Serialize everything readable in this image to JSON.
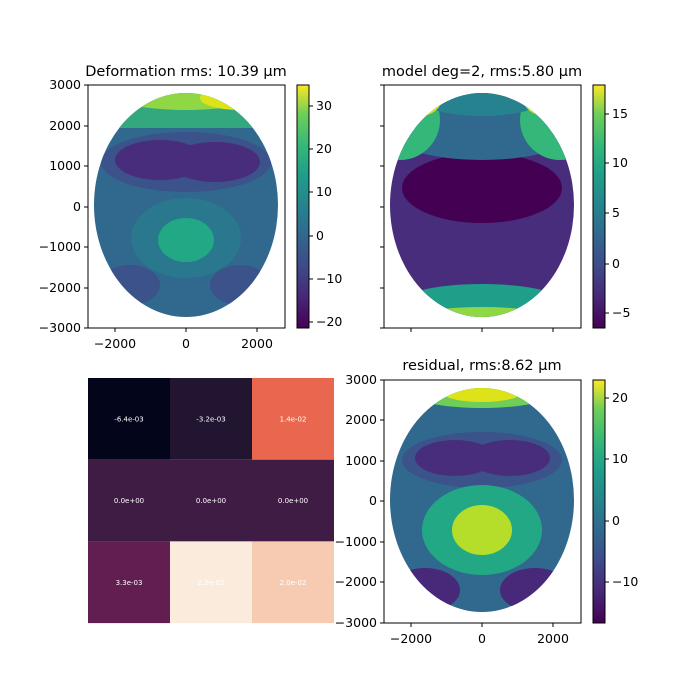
{
  "chart_data": [
    {
      "type": "heatmap",
      "panel": "top-left",
      "title": "Deformation rms: 10.39 μm",
      "xlabel": "",
      "ylabel": "",
      "xlim": [
        -2600,
        2600
      ],
      "ylim": [
        -3000,
        3000
      ],
      "xticks": [
        "−2000",
        "0",
        "2000"
      ],
      "yticks": [
        "3000",
        "2000",
        "1000",
        "0",
        "−1000",
        "−2000",
        "−3000"
      ],
      "colormap": "viridis",
      "colorbar": {
        "range": [
          -22,
          35
        ],
        "ticks": [
          "30",
          "20",
          "10",
          "0",
          "−10",
          "−20"
        ]
      },
      "grid": false
    },
    {
      "type": "heatmap",
      "panel": "top-right",
      "title": "model deg=2, rms:5.80 μm",
      "xlabel": "",
      "ylabel": "",
      "xlim": [
        -2600,
        2600
      ],
      "ylim": [
        -3000,
        3000
      ],
      "colormap": "viridis",
      "colorbar": {
        "range": [
          -7,
          18
        ],
        "ticks": [
          "15",
          "10",
          "5",
          "0",
          "−5"
        ]
      },
      "grid": false
    },
    {
      "type": "heatmap",
      "panel": "bottom-left",
      "title": "",
      "colormap": "rocket",
      "rows": [
        [
          "-6.4e-03",
          "-3.2e-03",
          "1.4e-02"
        ],
        [
          "0.0e+00",
          "0.0e+00",
          "0.0e+00"
        ],
        [
          "3.3e-03",
          "2.2e-02",
          "2.0e-02"
        ]
      ],
      "values": [
        [
          -0.0064,
          -0.0032,
          0.014
        ],
        [
          0.0,
          0.0,
          0.0
        ],
        [
          0.0033,
          0.022,
          0.02
        ]
      ]
    },
    {
      "type": "heatmap",
      "panel": "bottom-right",
      "title": "residual, rms:8.62 μm",
      "xlabel": "",
      "ylabel": "",
      "xlim": [
        -2600,
        2600
      ],
      "ylim": [
        -3000,
        3000
      ],
      "xticks": [
        "−2000",
        "0",
        "2000"
      ],
      "yticks": [
        "3000",
        "2000",
        "1000",
        "0",
        "−1000",
        "−2000",
        "−3000"
      ],
      "colormap": "viridis",
      "colorbar": {
        "range": [
          -17,
          24
        ],
        "ticks": [
          "20",
          "10",
          "0",
          "−10"
        ]
      },
      "grid": false
    }
  ]
}
